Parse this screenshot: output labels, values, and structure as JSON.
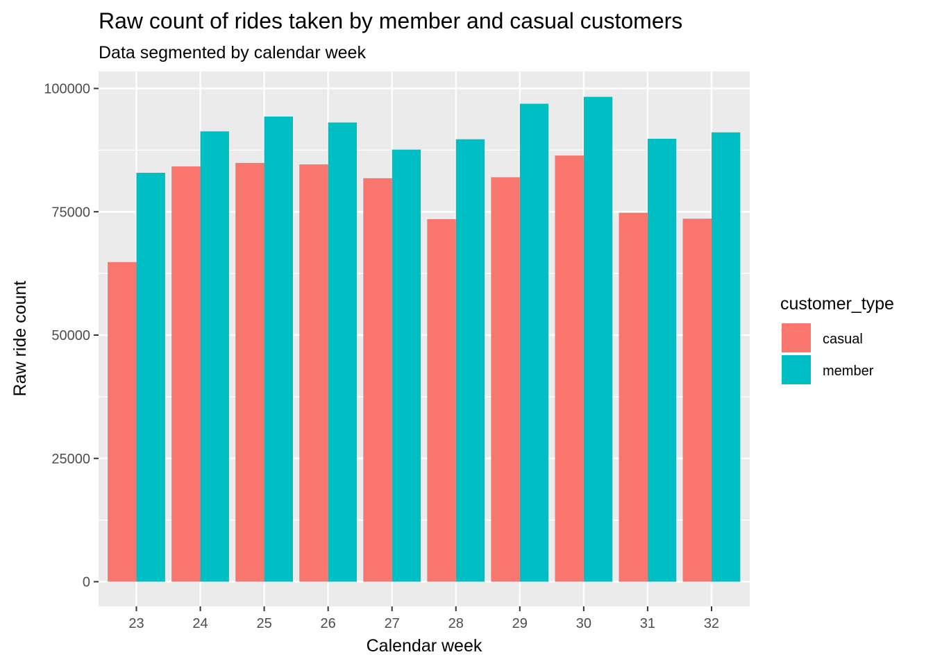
{
  "chart_data": {
    "type": "bar",
    "title": "Raw count of rides taken by member and casual customers",
    "subtitle": "Data segmented by calendar week",
    "xlabel": "Calendar week",
    "ylabel": "Raw ride count",
    "categories": [
      "23",
      "24",
      "25",
      "26",
      "27",
      "28",
      "29",
      "30",
      "31",
      "32"
    ],
    "series": [
      {
        "name": "casual",
        "color": "#F8766D",
        "values": [
          64800,
          84200,
          84900,
          84600,
          81800,
          73500,
          82000,
          86400,
          74800,
          73600
        ]
      },
      {
        "name": "member",
        "color": "#00BFC4",
        "values": [
          82900,
          91300,
          94300,
          93100,
          87600,
          89700,
          96900,
          98300,
          89800,
          91100
        ]
      }
    ],
    "ylim": [
      0,
      100000
    ],
    "yticks": [
      0,
      25000,
      50000,
      75000,
      100000
    ],
    "ytick_labels": [
      "0",
      "25000",
      "50000",
      "75000",
      "100000"
    ],
    "grid": true,
    "legend": {
      "title": "customer_type",
      "position": "right"
    },
    "panel_background": "#EBEBEB"
  }
}
